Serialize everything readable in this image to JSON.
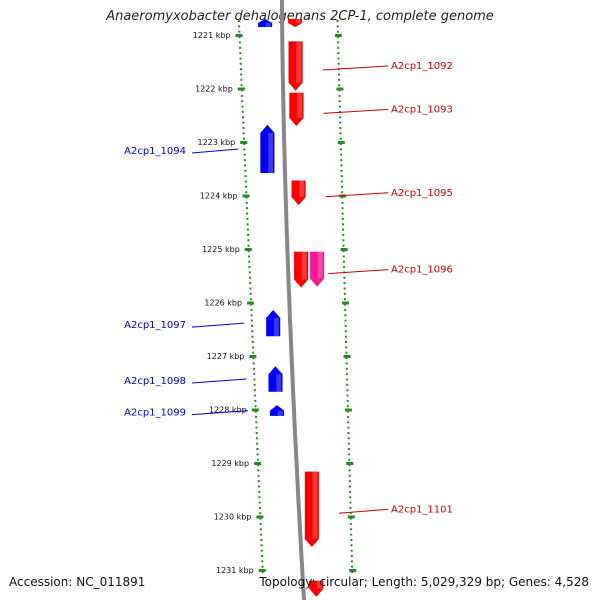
{
  "title": "Anaeromyxobacter dehalogenans 2CP-1, complete genome",
  "footer": {
    "accession": "Accession: NC_011891",
    "topology": "Topology: circular; Length: 5,029,329 bp; Genes: 4,528"
  },
  "colors": {
    "forward_gene": "#ff0000",
    "reverse_gene": "#0000ff",
    "other_gene": "#ff1493",
    "backbone": "#888888",
    "tick": "#228b22",
    "label_forward": "#cc0000",
    "label_reverse": "#0000cc"
  },
  "axis": {
    "unit": "kbp",
    "start_kbp": 1221,
    "end_kbp": 1231,
    "ticks": [
      "1221 kbp",
      "1222 kbp",
      "1223 kbp",
      "1224 kbp",
      "1225 kbp",
      "1226 kbp",
      "1227 kbp",
      "1228 kbp",
      "1229 kbp",
      "1230 kbp",
      "1231 kbp"
    ]
  },
  "genes": [
    {
      "label": "",
      "strand": "+",
      "start_kbp": 1220.7,
      "end_kbp": 1220.85,
      "type": "cds"
    },
    {
      "label": "",
      "strand": "-",
      "start_kbp": 1220.7,
      "end_kbp": 1220.85,
      "type": "cds"
    },
    {
      "label": "A2cp1_1092",
      "strand": "+",
      "start_kbp": 1221.12,
      "end_kbp": 1222.04,
      "type": "cds"
    },
    {
      "label": "A2cp1_1093",
      "strand": "+",
      "start_kbp": 1222.08,
      "end_kbp": 1222.7,
      "type": "cds"
    },
    {
      "label": "A2cp1_1094",
      "strand": "-",
      "start_kbp": 1222.68,
      "end_kbp": 1223.58,
      "type": "cds"
    },
    {
      "label": "A2cp1_1095",
      "strand": "+",
      "start_kbp": 1223.72,
      "end_kbp": 1224.18,
      "type": "cds"
    },
    {
      "label": "A2cp1_1096",
      "strand": "+",
      "start_kbp": 1225.05,
      "end_kbp": 1225.72,
      "type": "cds"
    },
    {
      "label": "",
      "strand": "+",
      "start_kbp": 1225.05,
      "end_kbp": 1225.7,
      "type": "other"
    },
    {
      "label": "A2cp1_1097",
      "strand": "-",
      "start_kbp": 1226.14,
      "end_kbp": 1226.63,
      "type": "cds"
    },
    {
      "label": "A2cp1_1098",
      "strand": "-",
      "start_kbp": 1227.19,
      "end_kbp": 1227.67,
      "type": "cds"
    },
    {
      "label": "A2cp1_1099",
      "strand": "-",
      "start_kbp": 1227.92,
      "end_kbp": 1228.12,
      "type": "cds"
    },
    {
      "label": "A2cp1_1101",
      "strand": "+",
      "start_kbp": 1229.16,
      "end_kbp": 1230.57,
      "type": "cds"
    },
    {
      "label": "",
      "strand": "+",
      "start_kbp": 1231.2,
      "end_kbp": 1231.5,
      "type": "cds"
    }
  ]
}
